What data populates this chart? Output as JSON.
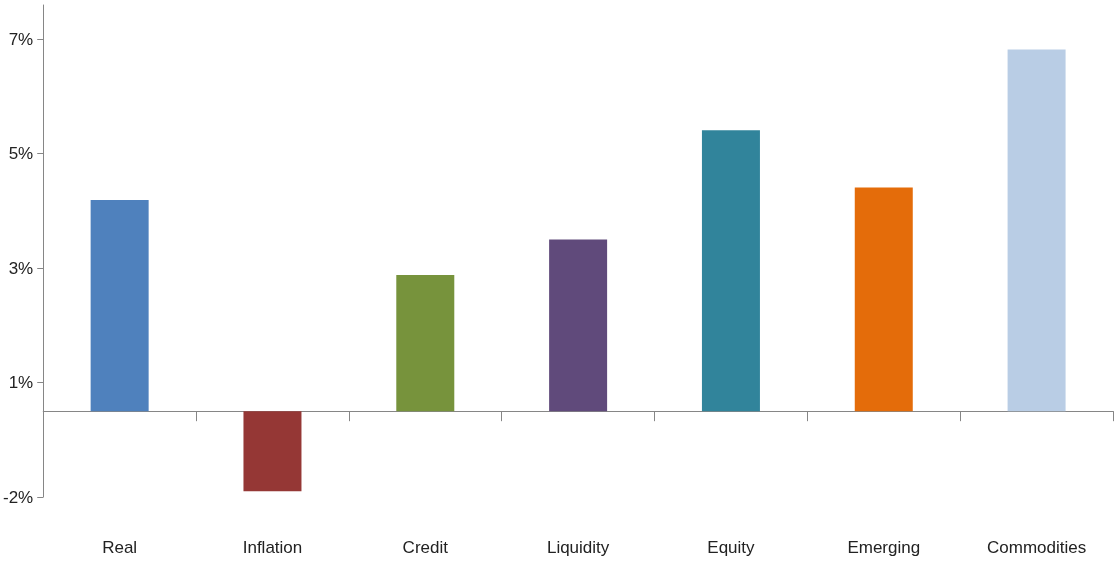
{
  "chart_data": {
    "type": "bar",
    "categories": [
      "Real",
      "Inflation",
      "Credit",
      "Liquidity",
      "Equity",
      "Emerging",
      "Commodities"
    ],
    "values": [
      3.69,
      -1.4,
      2.38,
      3.0,
      4.91,
      3.91,
      6.32
    ],
    "colors": [
      "#4f81bd",
      "#953735",
      "#77933c",
      "#604a7b",
      "#31849b",
      "#e46c0a",
      "#b9cde5"
    ],
    "ylim": [
      -1.5,
      7.1
    ],
    "yticks": [
      {
        "value": -1.5,
        "label": "-2%"
      },
      {
        "value": 0.5,
        "label": "1%"
      },
      {
        "value": 2.5,
        "label": "3%"
      },
      {
        "value": 4.5,
        "label": "5%"
      },
      {
        "value": 6.5,
        "label": "7%"
      }
    ],
    "grid": false
  }
}
